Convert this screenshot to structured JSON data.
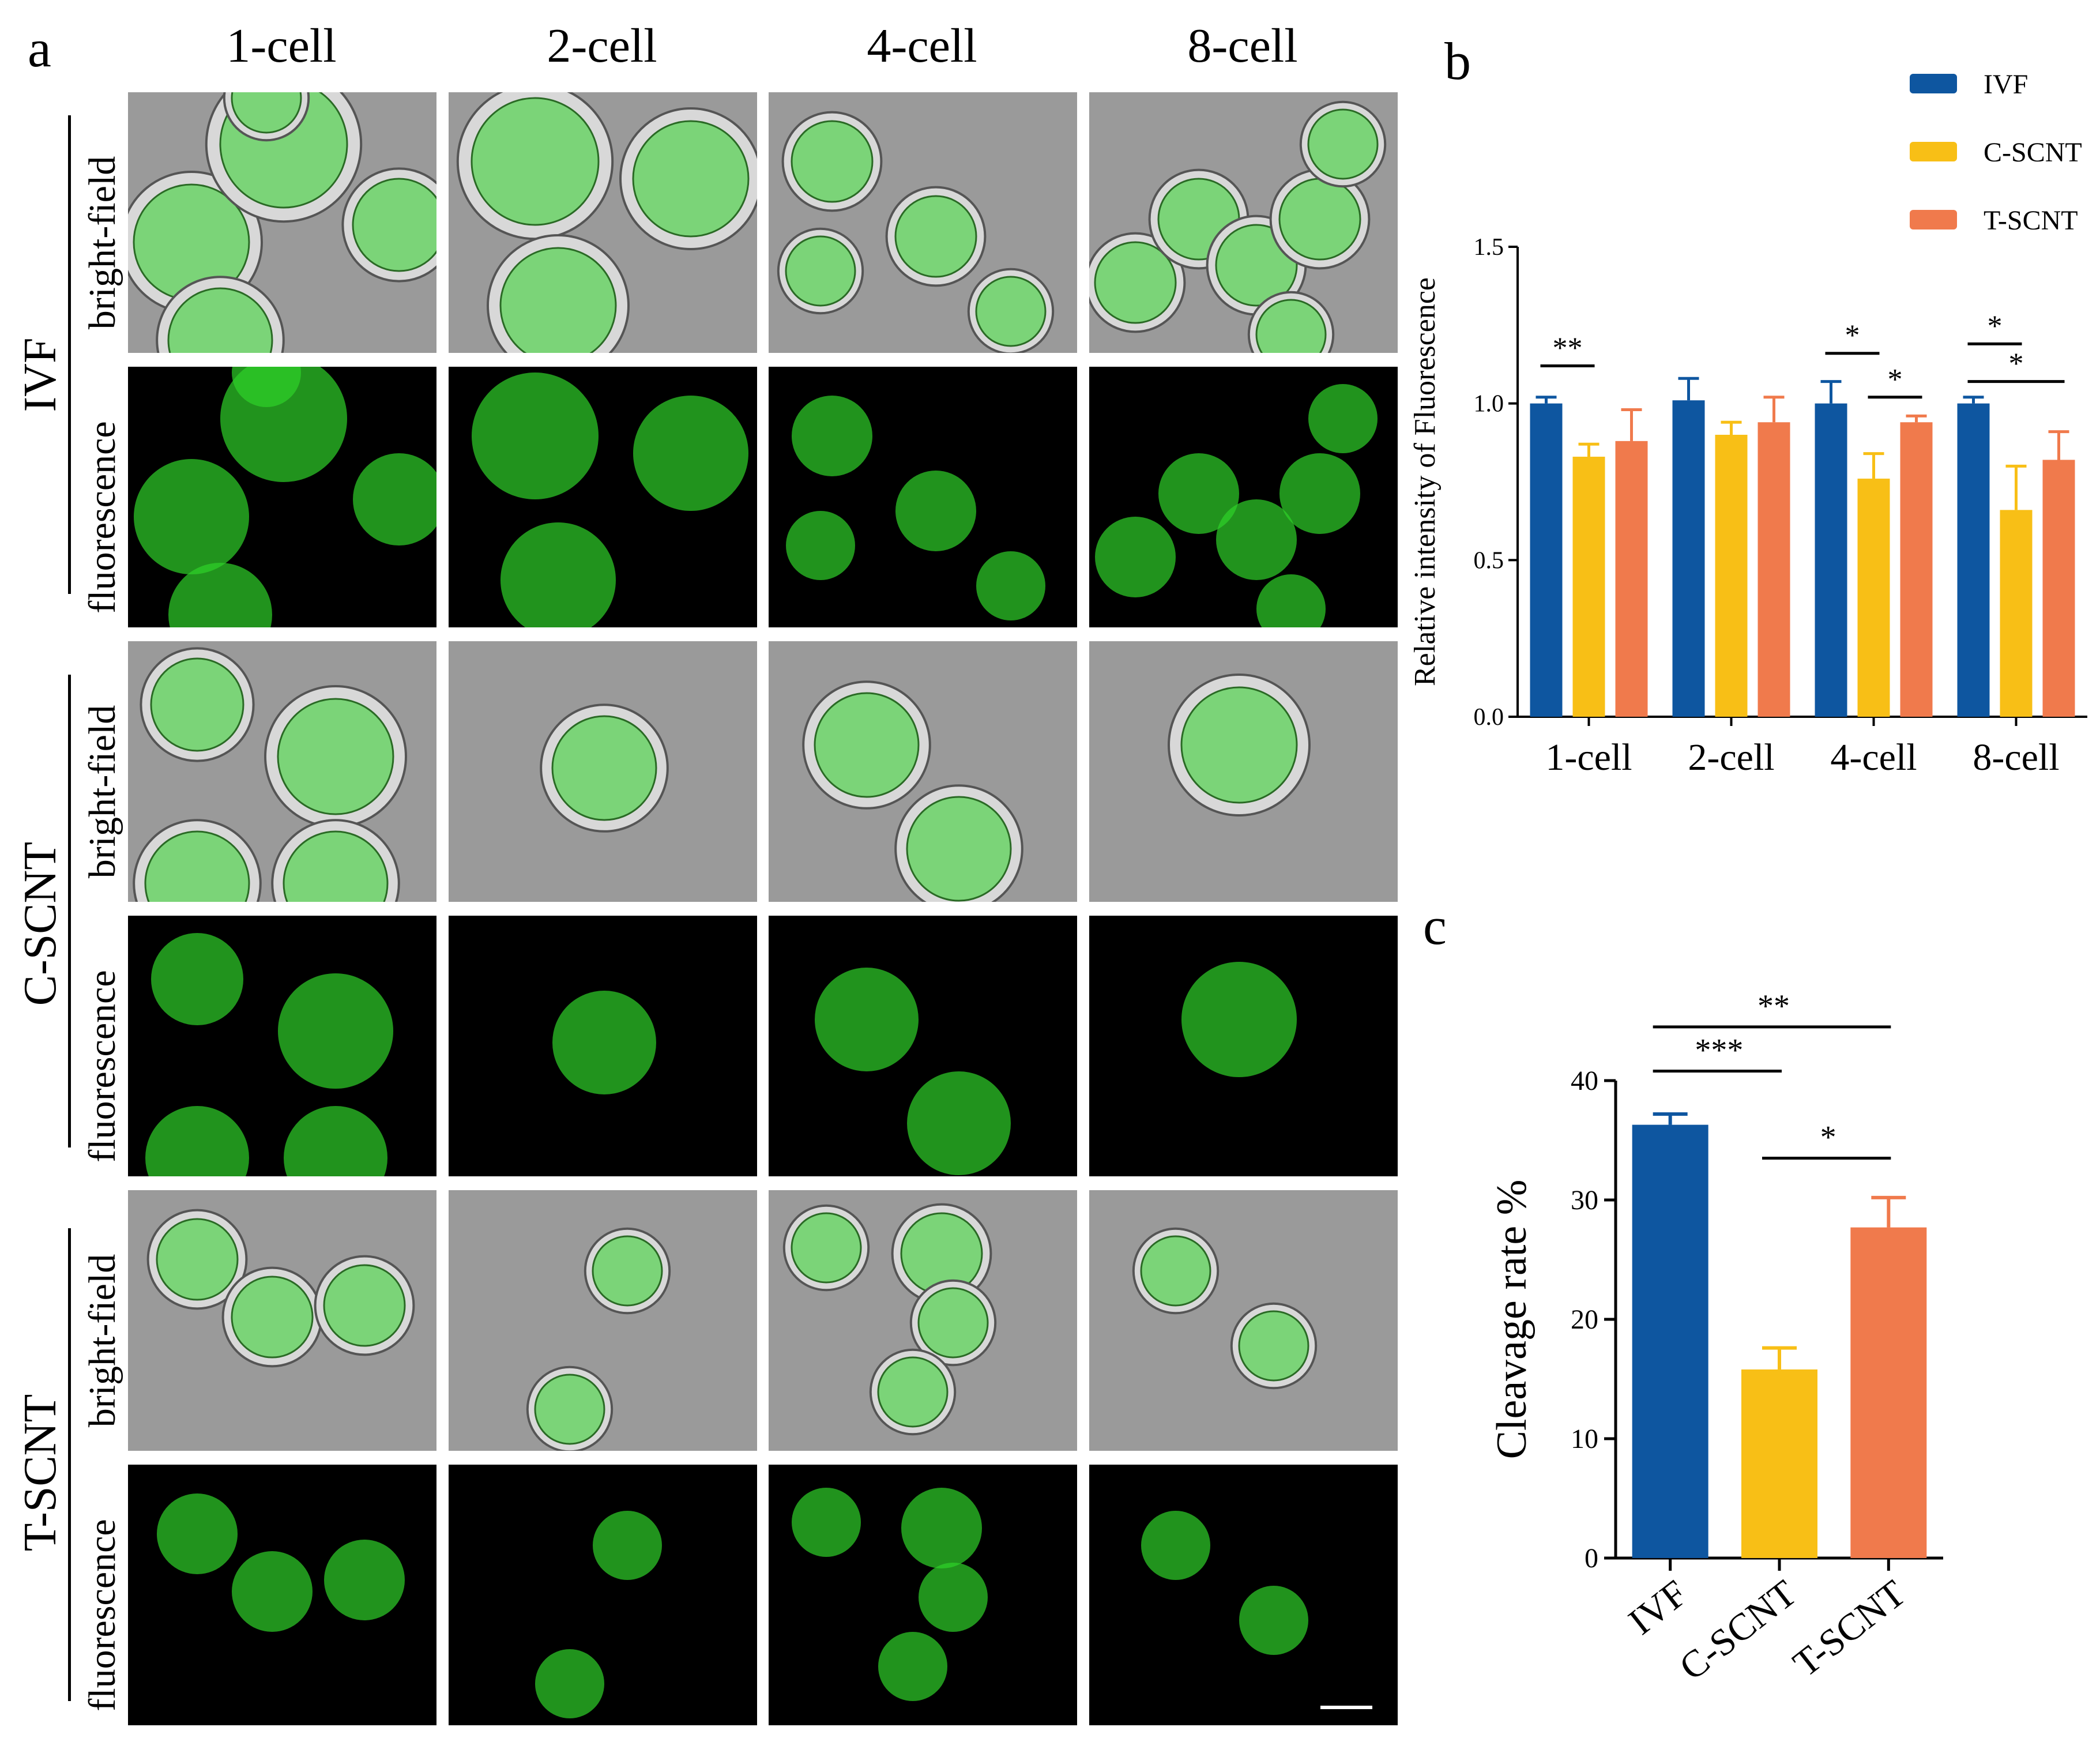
{
  "panel_a": {
    "letter": "a",
    "stage_headers": [
      "1-cell",
      "2-cell",
      "4-cell",
      "8-cell"
    ],
    "groups": [
      {
        "name": "IVF",
        "modes": [
          "bright-field",
          "fluorescence"
        ]
      },
      {
        "name": "C-SCNT",
        "modes": [
          "bright-field",
          "fluorescence"
        ]
      },
      {
        "name": "T-SCNT",
        "modes": [
          "bright-field",
          "fluorescence"
        ]
      }
    ],
    "colors": {
      "brightfield_bg": "#9a9a9a",
      "fluorescence_bg": "#000000",
      "gfp": "#2fd12a",
      "scale_bar": "#ffffff"
    }
  },
  "panel_b": {
    "letter": "b",
    "legend": [
      "IVF",
      "C-SCNT",
      "T-SCNT"
    ]
  },
  "panel_c": {
    "letter": "c"
  },
  "chart_data": [
    {
      "type": "bar",
      "panel": "b",
      "categories": [
        "1-cell",
        "2-cell",
        "4-cell",
        "8-cell"
      ],
      "ylabel": "Relative intensity of Fluorescence",
      "ylim": [
        0,
        1.5
      ],
      "yticks": [
        "0.0",
        "0.5",
        "1.0",
        "1.5"
      ],
      "legend_position": "top-right",
      "series": [
        {
          "name": "IVF",
          "color": "#0e56a0",
          "values": [
            1.0,
            1.01,
            1.0,
            1.0
          ],
          "errors": [
            0.02,
            0.07,
            0.07,
            0.02
          ]
        },
        {
          "name": "C-SCNT",
          "color": "#f8bf16",
          "values": [
            0.83,
            0.9,
            0.76,
            0.66
          ],
          "errors": [
            0.04,
            0.04,
            0.08,
            0.14
          ]
        },
        {
          "name": "T-SCNT",
          "color": "#f07a4c",
          "values": [
            0.88,
            0.94,
            0.94,
            0.82
          ],
          "errors": [
            0.1,
            0.08,
            0.02,
            0.09
          ]
        }
      ],
      "significance": [
        {
          "label": "**",
          "category": "1-cell",
          "between": [
            "IVF",
            "C-SCNT"
          ]
        },
        {
          "label": "*",
          "category": "4-cell",
          "between": [
            "IVF",
            "C-SCNT"
          ]
        },
        {
          "label": "*",
          "category": "4-cell",
          "between": [
            "C-SCNT",
            "T-SCNT"
          ]
        },
        {
          "label": "*",
          "category": "8-cell",
          "between": [
            "IVF",
            "C-SCNT"
          ]
        },
        {
          "label": "*",
          "category": "8-cell",
          "between": [
            "IVF",
            "T-SCNT"
          ]
        }
      ]
    },
    {
      "type": "bar",
      "panel": "c",
      "categories": [
        "IVF",
        "C-SCNT",
        "T-SCNT"
      ],
      "ylabel": "Cleavage rate %",
      "ylim": [
        0,
        40
      ],
      "yticks": [
        "0",
        "10",
        "20",
        "30",
        "40"
      ],
      "colors": [
        "#0e56a0",
        "#f8bf16",
        "#f07a4c"
      ],
      "values": [
        36.3,
        15.8,
        27.7
      ],
      "errors": [
        0.9,
        1.8,
        2.5
      ],
      "significance": [
        {
          "label": "***",
          "between": [
            "IVF",
            "C-SCNT"
          ]
        },
        {
          "label": "**",
          "between": [
            "IVF",
            "T-SCNT"
          ]
        },
        {
          "label": "*",
          "between": [
            "C-SCNT",
            "T-SCNT"
          ]
        }
      ]
    }
  ]
}
